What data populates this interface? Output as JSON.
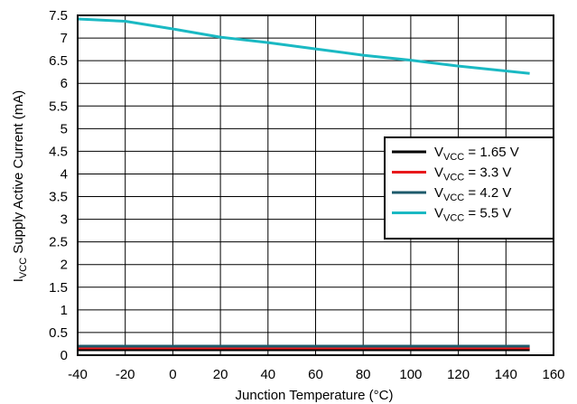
{
  "chart_data": {
    "type": "line",
    "xlabel": "Junction Temperature (°C)",
    "ylabel": {
      "main": "I",
      "sub": "VCC",
      "rest": " Supply Active Current (mA)"
    },
    "xlim": [
      -40,
      160
    ],
    "ylim": [
      0,
      7.5
    ],
    "x_ticks": [
      "-40",
      "-20",
      "0",
      "20",
      "40",
      "60",
      "80",
      "100",
      "120",
      "140",
      "160"
    ],
    "y_ticks": [
      "0",
      "0.5",
      "1",
      "1.5",
      "2",
      "2.5",
      "3",
      "3.5",
      "4",
      "4.5",
      "5",
      "5.5",
      "6",
      "6.5",
      "7",
      "7.5"
    ],
    "grid": true,
    "legend_position": "right",
    "series": [
      {
        "name_main": "V",
        "name_sub": "VCC",
        "name_rest": " = 1.65 V",
        "color": "#000000",
        "x": [
          -40,
          -20,
          0,
          20,
          40,
          60,
          80,
          100,
          120,
          150
        ],
        "y": [
          0.12,
          0.12,
          0.12,
          0.12,
          0.12,
          0.12,
          0.12,
          0.12,
          0.12,
          0.12
        ]
      },
      {
        "name_main": "V",
        "name_sub": "VCC",
        "name_rest": " = 3.3 V",
        "color": "#e8191c",
        "x": [
          -40,
          -20,
          0,
          20,
          40,
          60,
          80,
          100,
          120,
          150
        ],
        "y": [
          0.16,
          0.16,
          0.16,
          0.16,
          0.16,
          0.16,
          0.16,
          0.16,
          0.16,
          0.16
        ]
      },
      {
        "name_main": "V",
        "name_sub": "VCC",
        "name_rest": " = 4.2 V",
        "color": "#1d5a6b",
        "x": [
          -40,
          -20,
          0,
          20,
          40,
          60,
          80,
          100,
          120,
          150
        ],
        "y": [
          0.2,
          0.2,
          0.2,
          0.2,
          0.2,
          0.2,
          0.2,
          0.2,
          0.2,
          0.2
        ]
      },
      {
        "name_main": "V",
        "name_sub": "VCC",
        "name_rest": " = 5.5 V",
        "color": "#1ab9c3",
        "x": [
          -40,
          -20,
          0,
          20,
          40,
          60,
          80,
          100,
          120,
          150
        ],
        "y": [
          7.42,
          7.37,
          7.2,
          7.02,
          6.9,
          6.76,
          6.62,
          6.51,
          6.38,
          6.22
        ]
      }
    ]
  }
}
